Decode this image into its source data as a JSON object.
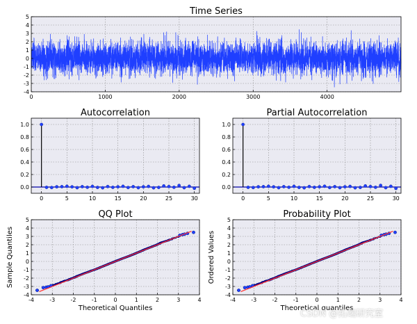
{
  "watermark": "CSDN @拓端研究室",
  "colors": {
    "series": "#1f3fff",
    "fit": "#ff3030",
    "axes_bg": "#eaeaf2",
    "grid": "#8a8a8a",
    "zero": "#0000aa"
  },
  "chart_data": [
    {
      "type": "line",
      "title": "Time Series",
      "xlabel": "",
      "ylabel": "",
      "xlim": [
        0,
        4999
      ],
      "ylim": [
        -4,
        5
      ],
      "xticks": [
        0,
        1000,
        2000,
        3000,
        4000
      ],
      "yticks": [
        -4,
        -3,
        -2,
        -1,
        0,
        1,
        2,
        3,
        4,
        5
      ],
      "n": 5000,
      "mean": 0,
      "std": 1,
      "grid": true
    },
    {
      "type": "stem",
      "title": "Autocorrelation",
      "xlim": [
        -2,
        31
      ],
      "ylim": [
        -0.1,
        1.1
      ],
      "xticks": [
        0,
        5,
        10,
        15,
        20,
        25,
        30
      ],
      "yticks": [
        0.0,
        0.2,
        0.4,
        0.6,
        0.8,
        1.0
      ],
      "lags": [
        0,
        1,
        2,
        3,
        4,
        5,
        6,
        7,
        8,
        9,
        10,
        11,
        12,
        13,
        14,
        15,
        16,
        17,
        18,
        19,
        20,
        21,
        22,
        23,
        24,
        25,
        26,
        27,
        28,
        29,
        30
      ],
      "values": [
        1.0,
        -0.005,
        -0.008,
        0.004,
        0.006,
        0.012,
        0.003,
        -0.01,
        0.006,
        -0.004,
        0.01,
        -0.006,
        -0.012,
        0.008,
        -0.005,
        0.004,
        0.012,
        -0.008,
        0.006,
        -0.01,
        0.004,
        0.01,
        -0.012,
        -0.006,
        0.018,
        0.008,
        -0.004,
        0.025,
        -0.01,
        0.012,
        -0.02
      ],
      "grid": true
    },
    {
      "type": "stem",
      "title": "Partial Autocorrelation",
      "xlim": [
        -2,
        31
      ],
      "ylim": [
        -0.1,
        1.1
      ],
      "xticks": [
        0,
        5,
        10,
        15,
        20,
        25,
        30
      ],
      "yticks": [
        0.0,
        0.2,
        0.4,
        0.6,
        0.8,
        1.0
      ],
      "lags": [
        0,
        1,
        2,
        3,
        4,
        5,
        6,
        7,
        8,
        9,
        10,
        11,
        12,
        13,
        14,
        15,
        16,
        17,
        18,
        19,
        20,
        21,
        22,
        23,
        24,
        25,
        26,
        27,
        28,
        29,
        30
      ],
      "values": [
        1.0,
        -0.005,
        -0.008,
        0.004,
        0.006,
        0.012,
        0.003,
        -0.01,
        0.006,
        -0.004,
        0.011,
        -0.006,
        -0.012,
        0.008,
        -0.005,
        0.004,
        0.013,
        -0.008,
        0.006,
        -0.01,
        0.004,
        0.01,
        -0.012,
        -0.006,
        0.018,
        0.008,
        -0.004,
        0.026,
        -0.01,
        0.012,
        -0.022
      ],
      "grid": true
    },
    {
      "type": "scatter",
      "title": "QQ Plot",
      "xlabel": "Theoretical Quantiles",
      "ylabel": "Sample Quantiles",
      "xlim": [
        -4,
        4
      ],
      "ylim": [
        -4,
        5
      ],
      "xticks": [
        -4,
        -3,
        -2,
        -1,
        0,
        1,
        2,
        3,
        4
      ],
      "yticks": [
        -4,
        -3,
        -2,
        -1,
        0,
        1,
        2,
        3,
        4,
        5
      ],
      "fit_line": {
        "slope": 1.0,
        "intercept": 0.0
      },
      "q_range": [
        -3.62,
        3.62
      ],
      "grid": true
    },
    {
      "type": "scatter",
      "title": "Probability Plot",
      "xlabel": "Theoretical quantiles",
      "ylabel": "Ordered Values",
      "xlim": [
        -4,
        4
      ],
      "ylim": [
        -4,
        5
      ],
      "xticks": [
        -4,
        -3,
        -2,
        -1,
        0,
        1,
        2,
        3,
        4
      ],
      "yticks": [
        -4,
        -3,
        -2,
        -1,
        0,
        1,
        2,
        3,
        4,
        5
      ],
      "fit_line": {
        "slope": 1.0,
        "intercept": 0.0
      },
      "q_range": [
        -3.62,
        3.62
      ],
      "grid": true
    }
  ]
}
